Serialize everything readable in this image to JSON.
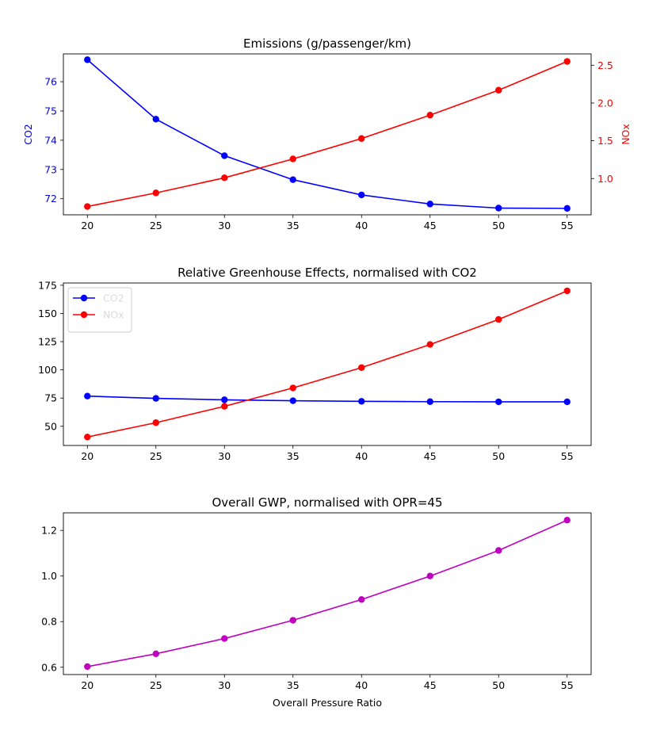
{
  "chart_data": [
    {
      "type": "line",
      "title": "Emissions (g/passenger/km)",
      "xlabel": "",
      "x": [
        20,
        25,
        30,
        35,
        40,
        45,
        50,
        55
      ],
      "xticks": [
        20,
        25,
        30,
        35,
        40,
        45,
        50,
        55
      ],
      "xlim": [
        18.25,
        56.75
      ],
      "ylabel": "CO2",
      "ylabel_color": "#0000ff",
      "ylim": [
        71.45,
        76.95
      ],
      "yticks": [
        72,
        73,
        74,
        75,
        76
      ],
      "ylabel_right": "NOx",
      "ylabel_right_color": "#ff0000",
      "ylim_right": [
        0.52,
        2.65
      ],
      "yticks_right": [
        1.0,
        1.5,
        2.0,
        2.5
      ],
      "yticks_right_labels": [
        "1.0",
        "1.5",
        "2.0",
        "2.5"
      ],
      "grid": false,
      "legend": "none",
      "series": [
        {
          "axis": "left",
          "color": "#0000ff",
          "values": [
            76.75,
            74.72,
            73.47,
            72.65,
            72.13,
            71.82,
            71.68,
            71.67
          ]
        },
        {
          "axis": "right",
          "color": "#ff0000",
          "values": [
            0.63,
            0.81,
            1.01,
            1.26,
            1.53,
            1.84,
            2.17,
            2.55
          ]
        }
      ]
    },
    {
      "type": "line",
      "title": "Relative Greenhouse Effects, normalised with CO2",
      "xlabel": "",
      "x": [
        20,
        25,
        30,
        35,
        40,
        45,
        50,
        55
      ],
      "xticks": [
        20,
        25,
        30,
        35,
        40,
        45,
        50,
        55
      ],
      "xlim": [
        18.25,
        56.75
      ],
      "ylabel": "",
      "ylim": [
        33,
        177
      ],
      "yticks": [
        50,
        75,
        100,
        125,
        150,
        175
      ],
      "grid": false,
      "legend": "top-left",
      "series": [
        {
          "name": "CO2",
          "color": "#0000ff",
          "values": [
            76.75,
            74.72,
            73.47,
            72.65,
            72.13,
            71.82,
            71.68,
            71.67
          ]
        },
        {
          "name": "NOx",
          "color": "#ff0000",
          "values": [
            40.5,
            53.2,
            67.7,
            84.0,
            102.0,
            122.5,
            144.7,
            170.0
          ]
        }
      ]
    },
    {
      "type": "line",
      "title": "Overall GWP, normalised with OPR=45",
      "xlabel": "Overall Pressure Ratio",
      "x": [
        20,
        25,
        30,
        35,
        40,
        45,
        50,
        55
      ],
      "xticks": [
        20,
        25,
        30,
        35,
        40,
        45,
        50,
        55
      ],
      "xlim": [
        18.25,
        56.75
      ],
      "ylabel": "",
      "ylim": [
        0.568,
        1.277
      ],
      "yticks": [
        0.6,
        0.8,
        1.0,
        1.2
      ],
      "yticks_labels": [
        "0.6",
        "0.8",
        "1.0",
        "1.2"
      ],
      "grid": false,
      "legend": "none",
      "series": [
        {
          "color": "#bf00bf",
          "values": [
            0.603,
            0.659,
            0.726,
            0.806,
            0.897,
            1.0,
            1.112,
            1.245
          ]
        }
      ]
    }
  ]
}
